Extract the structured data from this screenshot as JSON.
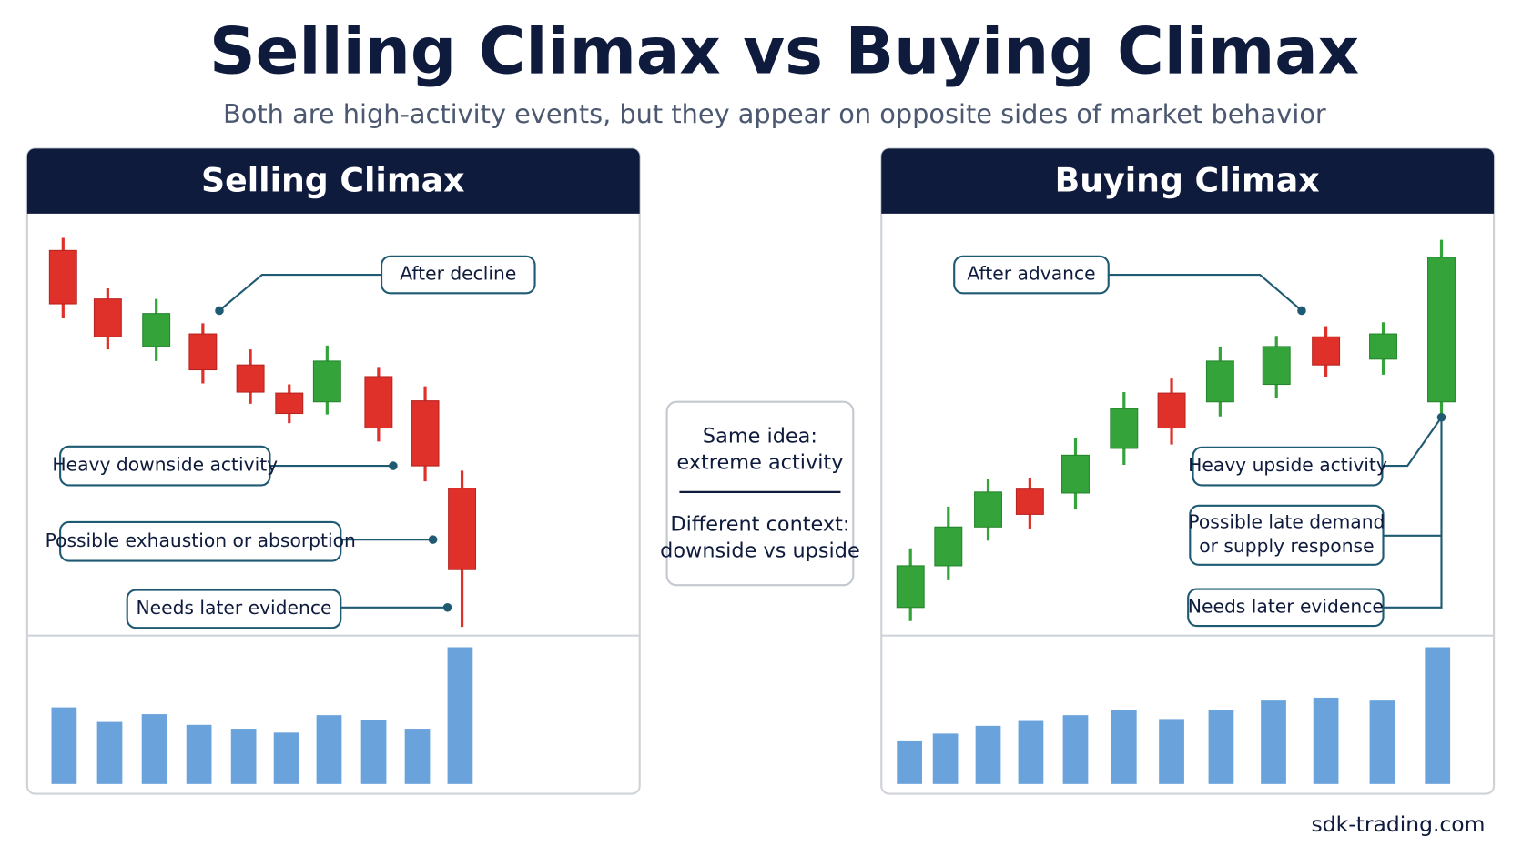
{
  "header": {
    "title": "Selling Climax vs Buying Climax",
    "subtitle": "Both are high-activity events, but they appear on opposite sides of market behavior"
  },
  "panels": [
    {
      "title": "Selling Climax",
      "callouts": [
        [
          "After decline"
        ],
        [
          "Heavy downside activity"
        ],
        [
          "Possible exhaustion or absorption"
        ],
        [
          "Needs later evidence"
        ]
      ]
    },
    {
      "title": "Buying Climax",
      "callouts": [
        [
          "After advance"
        ],
        [
          "Heavy upside activity"
        ],
        [
          "Possible late demand",
          "or supply response"
        ],
        [
          "Needs later evidence"
        ]
      ]
    }
  ],
  "center": {
    "top": [
      "Same idea:",
      "extreme activity"
    ],
    "bottom": [
      "Different context:",
      "downside vs upside"
    ]
  },
  "footer": "sdk-trading.com"
}
